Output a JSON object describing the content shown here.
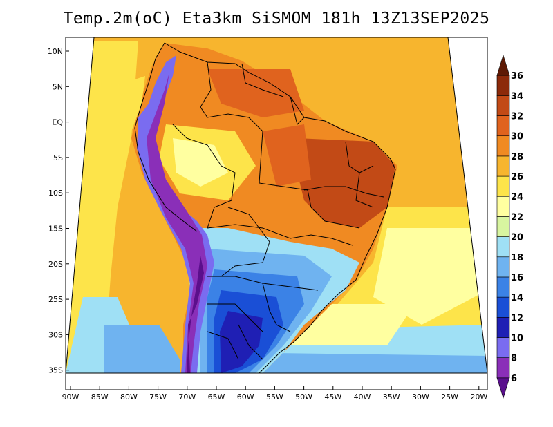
{
  "title": "Temp.2m(oC) Eta3km SiSMOM 181h 13Z13SEP2025",
  "map": {
    "lat_labels": [
      "10N",
      "5N",
      "EQ",
      "5S",
      "10S",
      "15S",
      "20S",
      "25S",
      "30S",
      "35S"
    ],
    "lon_labels": [
      "90W",
      "85W",
      "80W",
      "75W",
      "70W",
      "65W",
      "60W",
      "55W",
      "50W",
      "45W",
      "40W",
      "35W",
      "30W",
      "25W",
      "20W"
    ]
  },
  "colorbar": {
    "labels": [
      "6",
      "8",
      "10",
      "12",
      "14",
      "16",
      "18",
      "20",
      "22",
      "24",
      "26",
      "28",
      "30",
      "32",
      "34",
      "36"
    ],
    "colors": [
      "#5a0f8c",
      "#8a2fb8",
      "#7a6cf0",
      "#1f1fb4",
      "#1a4fd6",
      "#3b82e6",
      "#6fb3f0",
      "#9fe0f5",
      "#d8f5a0",
      "#ffffa0",
      "#fde44a",
      "#f7b52e",
      "#f08a22",
      "#e0631e",
      "#c24a16",
      "#8c2a0a",
      "#5e1a05"
    ]
  }
}
